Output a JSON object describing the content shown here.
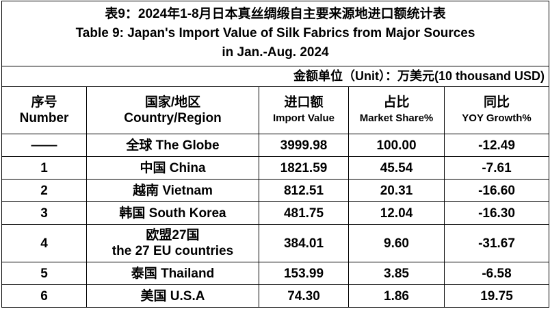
{
  "title": [
    "表9：2024年1-8月日本真丝绸缎自主要来源地进口额统计表",
    "Table 9: Japan's Import Value of Silk Fabrics from Major Sources",
    "in Jan.-Aug. 2024"
  ],
  "unit": "金额单位（Unit）：万美元(10 thousand USD)",
  "table": {
    "header": [
      [
        "序号",
        "Number"
      ],
      [
        "国家/地区",
        "Country/Region"
      ],
      [
        "进口额",
        "Import Value"
      ],
      [
        "占比",
        "Market Share%"
      ],
      [
        "同比",
        "YOY Growth%"
      ]
    ],
    "rows": [
      [
        "——",
        [
          "全球 The Globe"
        ],
        "3999.98",
        "100.00",
        "-12.49"
      ],
      [
        "1",
        [
          "中国 China"
        ],
        "1821.59",
        "45.54",
        "-7.61"
      ],
      [
        "2",
        [
          "越南 Vietnam"
        ],
        "812.51",
        "20.31",
        "-16.60"
      ],
      [
        "3",
        [
          "韩国 South Korea"
        ],
        "481.75",
        "12.04",
        "-16.30"
      ],
      [
        "4",
        [
          "欧盟27国",
          "the 27 EU countries"
        ],
        "384.01",
        "9.60",
        "-31.67"
      ],
      [
        "5",
        [
          "泰国 Thailand"
        ],
        "153.99",
        "3.85",
        "-6.58"
      ],
      [
        "6",
        [
          "美国 U.S.A"
        ],
        "74.30",
        "1.86",
        "19.75"
      ]
    ]
  }
}
